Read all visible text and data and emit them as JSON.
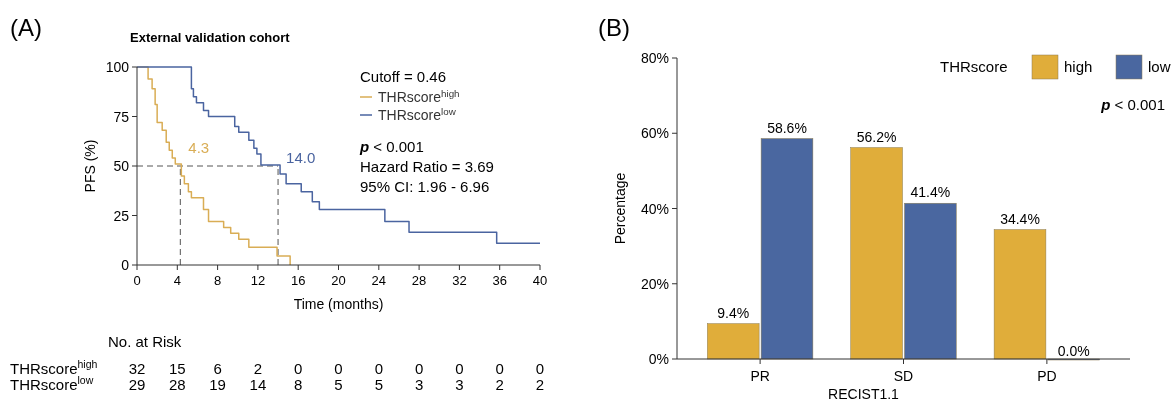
{
  "chart_data": [
    {
      "type": "step",
      "title": "External validation cohort",
      "xlabel": "Time (months)",
      "ylabel": "PFS (%)",
      "xlim": [
        0,
        40
      ],
      "xticks": [
        0,
        4,
        8,
        12,
        16,
        20,
        24,
        28,
        32,
        36,
        40
      ],
      "ylim": [
        0,
        100
      ],
      "yticks": [
        0,
        25,
        50,
        75,
        100
      ],
      "legend": "top right",
      "legend_title": "Cutoff = 0.46",
      "series": [
        {
          "name": "THRscore$^{high}$",
          "color": "#d9ad55",
          "x": [
            0,
            1.1,
            1.5,
            1.8,
            2.0,
            2.5,
            2.9,
            3.2,
            3.5,
            3.8,
            4.4,
            4.7,
            5.1,
            5.4,
            6.6,
            7.1,
            8.6,
            9.3,
            10.1,
            11.1,
            13.9,
            15.2
          ],
          "values": [
            100,
            94,
            89,
            81,
            72,
            68,
            62,
            58,
            54,
            51,
            45,
            41,
            37,
            34,
            28,
            22,
            19,
            16,
            13,
            9,
            4.5,
            0
          ]
        },
        {
          "name": "THRscore$^{low}$",
          "color": "#4a64a0",
          "x": [
            0,
            5.4,
            5.6,
            5.9,
            6.6,
            7.1,
            9.7,
            10.1,
            11.1,
            11.6,
            11.9,
            12.3,
            14.2,
            14.8,
            16.3,
            17.4,
            18.1,
            24.6,
            27.0,
            35.7,
            40
          ],
          "values": [
            100,
            89,
            85,
            82,
            78,
            75,
            70,
            67,
            63,
            59,
            56,
            50.5,
            46,
            41,
            37,
            32,
            28,
            22,
            16.5,
            11,
            11
          ]
        }
      ],
      "ref_lines": [
        {
          "axis": "y",
          "value": 50,
          "line_style": "dashed"
        },
        {
          "axis": "x",
          "value": 4.3,
          "line_style": "dashed"
        },
        {
          "axis": "x",
          "value": 14.0,
          "line_style": "dashed"
        }
      ],
      "annotations": [
        "(A)",
        {
          "text": "4.3",
          "x": 4.3,
          "y": 50
        },
        {
          "text": "14.0",
          "x": 14.0,
          "y": 50
        },
        "p < 0.001",
        "Hazard Ratio = 3.69",
        "95% CI: 1.96 - 6.96",
        "No. at Risk",
        "THRscore$^{high}$ 32 15 6 2 0 0 0 0 0 0 0",
        "THRscore$^{low}$ 29 28 19 14 8 5 5 3 3 2 2"
      ]
    },
    {
      "type": "bar",
      "xlabel": "RECIST1.1",
      "ylabel": "Percentage",
      "categories": [
        "PR",
        "SD",
        "PD"
      ],
      "ylim": [
        0,
        80
      ],
      "yticks": [
        {
          "value": 0,
          "label": "0%"
        },
        {
          "value": 20,
          "label": "20%"
        },
        {
          "value": 40,
          "label": "40%"
        },
        {
          "value": 60,
          "label": "60%"
        },
        {
          "value": 80,
          "label": "80%"
        }
      ],
      "legend": "top right",
      "legend_title": "THRscore",
      "series": [
        {
          "name": "high",
          "color": "#e0ad3a",
          "values": [
            9.4,
            56.2,
            34.4
          ],
          "value_labels": [
            "9.4%",
            "56.2%",
            "34.4%"
          ]
        },
        {
          "name": "low",
          "color": "#4a67a0",
          "values": [
            58.6,
            41.4,
            0.0
          ],
          "value_labels": [
            "58.6%",
            "41.4%",
            "0.0%"
          ]
        }
      ],
      "annotations": [
        "(B)",
        "p < 0.001"
      ]
    }
  ]
}
